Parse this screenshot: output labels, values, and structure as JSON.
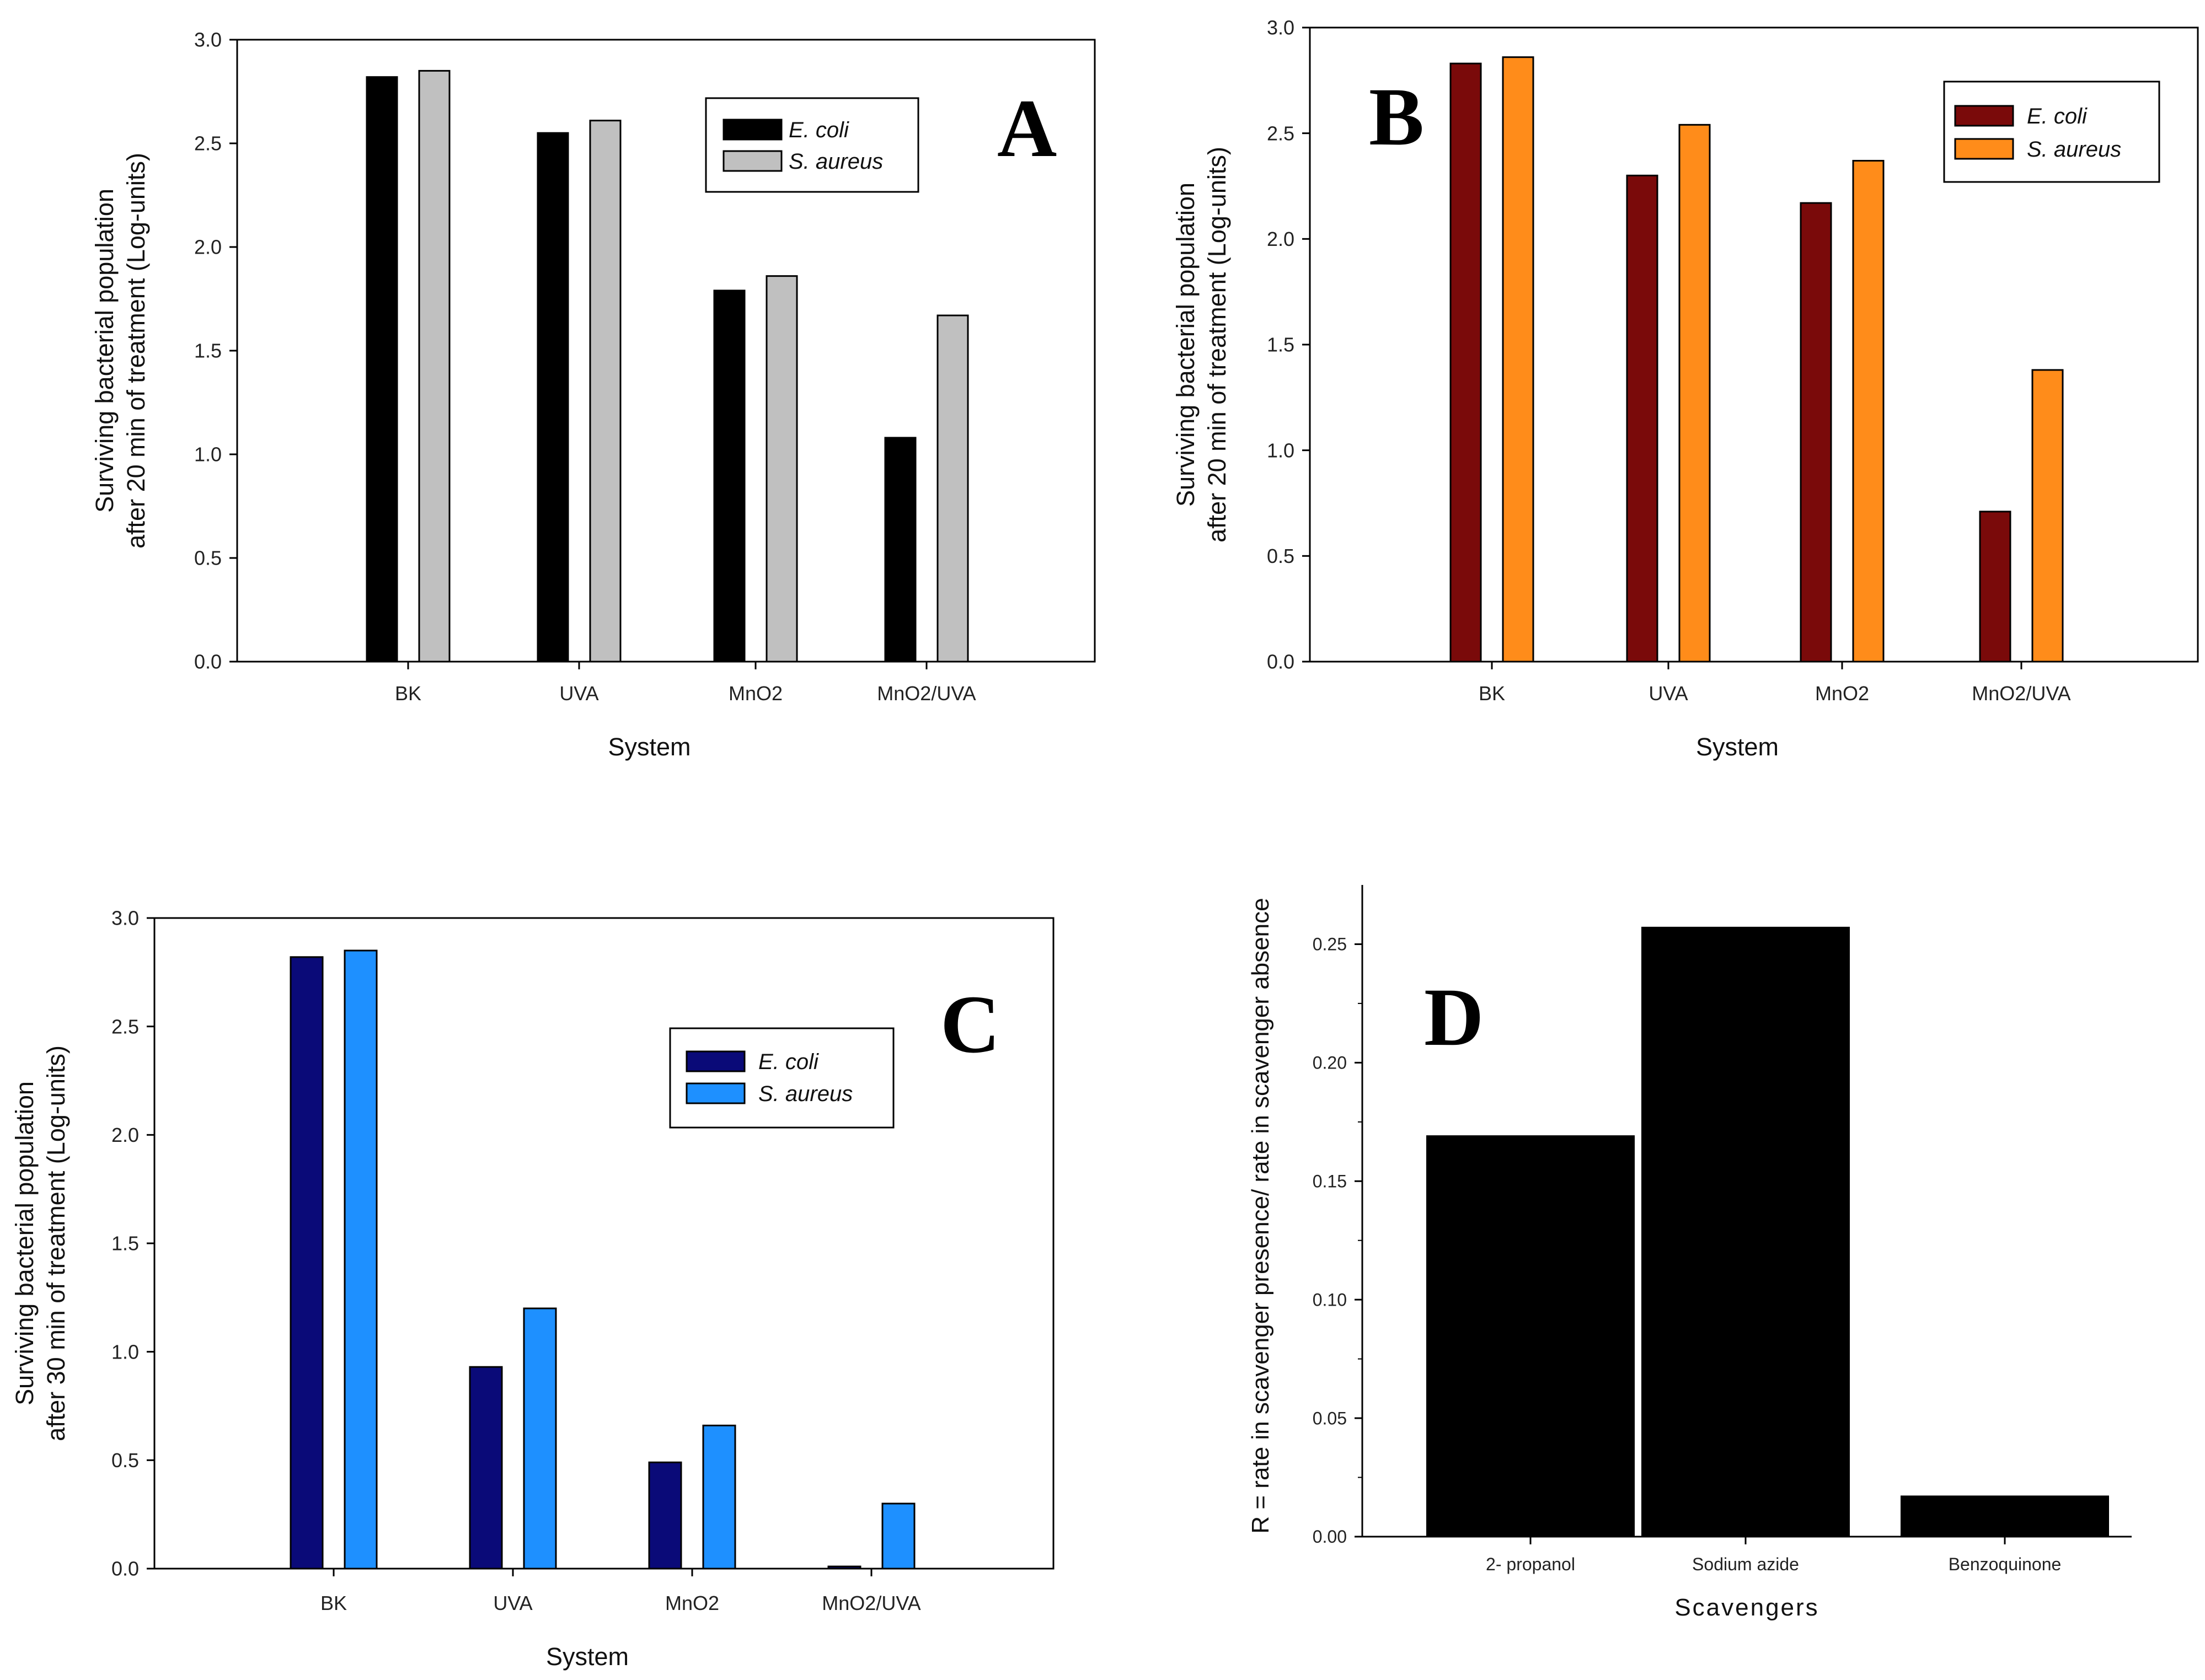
{
  "chart_data": [
    {
      "panel": "A",
      "type": "bar",
      "title": "",
      "xlabel": "System",
      "ylabel": [
        "Surviving bacterial population",
        "after 20 min of treatment (Log-units)"
      ],
      "categories": [
        "BK",
        "UVA",
        "MnO2",
        "MnO2/UVA"
      ],
      "ylim": [
        0,
        3.0
      ],
      "yticks": [
        "0.0",
        "0.5",
        "1.0",
        "1.5",
        "2.0",
        "2.5",
        "3.0"
      ],
      "grid": false,
      "legend_position": "top-right",
      "series": [
        {
          "name": "E. coli",
          "color": "#000000",
          "values": [
            2.82,
            2.55,
            1.79,
            1.08
          ]
        },
        {
          "name": "S. aureus",
          "color": "#c0c0c0",
          "values": [
            2.85,
            2.61,
            1.86,
            1.67
          ]
        }
      ]
    },
    {
      "panel": "B",
      "type": "bar",
      "title": "",
      "xlabel": "System",
      "ylabel": [
        "Surviving bacterial population",
        "after 20 min of treatment (Log-units)"
      ],
      "categories": [
        "BK",
        "UVA",
        "MnO2",
        "MnO2/UVA"
      ],
      "ylim": [
        0,
        3.0
      ],
      "yticks": [
        "0.0",
        "0.5",
        "1.0",
        "1.5",
        "2.0",
        "2.5",
        "3.0"
      ],
      "grid": false,
      "legend_position": "top-right",
      "series": [
        {
          "name": "E. coli",
          "color": "#7a0a0a",
          "values": [
            2.83,
            2.3,
            2.17,
            0.71
          ]
        },
        {
          "name": "S. aureus",
          "color": "#ff8c1a",
          "values": [
            2.86,
            2.54,
            2.37,
            1.38
          ]
        }
      ]
    },
    {
      "panel": "C",
      "type": "bar",
      "title": "",
      "xlabel": "System",
      "ylabel": [
        "Surviving bacterial population",
        "after 30 min of treatment (Log-units)"
      ],
      "categories": [
        "BK",
        "UVA",
        "MnO2",
        "MnO2/UVA"
      ],
      "ylim": [
        0,
        3.0
      ],
      "yticks": [
        "0.0",
        "0.5",
        "1.0",
        "1.5",
        "2.0",
        "2.5",
        "3.0"
      ],
      "grid": false,
      "legend_position": "top-right",
      "series": [
        {
          "name": "E. coli",
          "color": "#0a0a78",
          "values": [
            2.82,
            0.93,
            0.49,
            0.01
          ]
        },
        {
          "name": "S. aureus",
          "color": "#1e90ff",
          "values": [
            2.85,
            1.2,
            0.66,
            0.3
          ]
        }
      ]
    },
    {
      "panel": "D",
      "type": "bar",
      "title": "",
      "xlabel": "Scavengers",
      "ylabel": [
        "R = rate in scavenger presence/ rate in scavenger absence"
      ],
      "categories": [
        "2- propanol",
        "Sodium azide",
        "Benzoquinone"
      ],
      "ylim": [
        0,
        0.275
      ],
      "yticks": [
        "0.00",
        "0.05",
        "0.10",
        "0.15",
        "0.20",
        "0.25"
      ],
      "grid": false,
      "legend_position": "none",
      "series": [
        {
          "name": "R",
          "color": "#000000",
          "values": [
            0.169,
            0.257,
            0.017
          ]
        }
      ]
    }
  ]
}
